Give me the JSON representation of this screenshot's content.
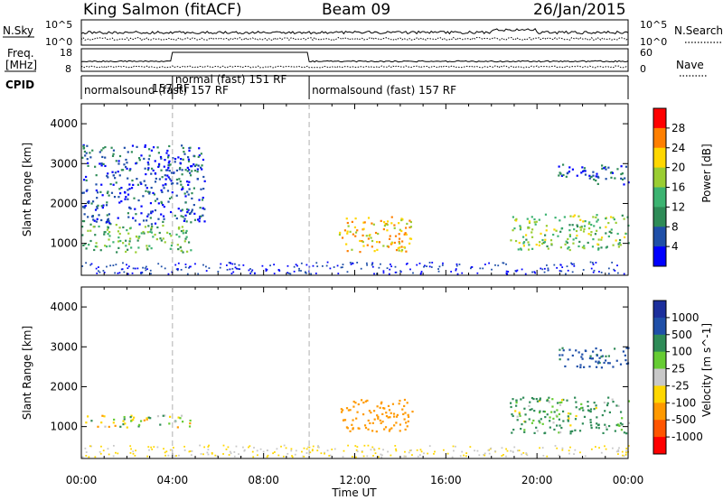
{
  "header": {
    "title": "King Salmon (fitACF)",
    "beam": "Beam 09",
    "date": "26/Jan/2015"
  },
  "top_panels": {
    "nsky_label": "N.Sky",
    "nsearch_label": "N.Search",
    "freq_label_1": "Freq.",
    "freq_label_2": "[MHz]",
    "nave_label": "Nave",
    "cpid_label": "CPID",
    "noise_ticks_left": [
      "10^5",
      "10^0"
    ],
    "noise_ticks_right": [
      "10^5",
      "10^0"
    ],
    "freq_ticks": [
      "18",
      "8"
    ],
    "nave_ticks": [
      "60",
      "0"
    ]
  },
  "cpid_segments": [
    {
      "label": "normalsound (fast) 157 RF",
      "start_hour": 0.0,
      "end_hour": 4.0
    },
    {
      "label": "normal (fast) 151 RF",
      "start_hour": 4.0,
      "end_hour": 10.0
    },
    {
      "label": "normalsound (fast) 157 RF",
      "start_hour": 10.0,
      "end_hour": 24.0
    }
  ],
  "cpid_overlap_label": "157 RF",
  "chart_data": [
    {
      "type": "heatmap",
      "name": "power",
      "ylabel": "Slant Range [km]",
      "xlabel": "",
      "xlim": [
        0,
        24
      ],
      "ylim": [
        200,
        4500
      ],
      "yticks": [
        "1000",
        "2000",
        "3000",
        "4000"
      ],
      "colorbar": {
        "label": "Power [dB]",
        "ticks": [
          "28",
          "24",
          "20",
          "16",
          "12",
          "8",
          "4"
        ],
        "colors": [
          "#ff0000",
          "#ff7f00",
          "#ffd700",
          "#9acd32",
          "#3cb371",
          "#2e8b57",
          "#1f4fa8",
          "#0000ff"
        ]
      },
      "features": [
        {
          "start_hour": 0.0,
          "end_hour": 4.8,
          "range_min_km": 800,
          "range_max_km": 1500,
          "level_db": 14
        },
        {
          "start_hour": 0.0,
          "end_hour": 5.4,
          "range_min_km": 1500,
          "range_max_km": 3500,
          "level_db": 6
        },
        {
          "start_hour": 11.3,
          "end_hour": 14.5,
          "range_min_km": 800,
          "range_max_km": 1700,
          "level_db": 22
        },
        {
          "start_hour": 18.8,
          "end_hour": 24.0,
          "range_min_km": 850,
          "range_max_km": 1750,
          "level_db": 16
        },
        {
          "start_hour": 20.8,
          "end_hour": 24.0,
          "range_min_km": 2500,
          "range_max_km": 3000,
          "level_db": 6
        }
      ]
    },
    {
      "type": "heatmap",
      "name": "velocity",
      "ylabel": "Slant Range [km]",
      "xlabel": "Time UT",
      "xlim": [
        0,
        24
      ],
      "ylim": [
        200,
        4500
      ],
      "yticks": [
        "1000",
        "2000",
        "3000",
        "4000"
      ],
      "xticks": [
        "00:00",
        "04:00",
        "08:00",
        "12:00",
        "16:00",
        "20:00",
        "00:00"
      ],
      "colorbar": {
        "label": "Velocity [m s^-1]",
        "ticks": [
          "1000",
          "500",
          "100",
          "25",
          "-25",
          "-100",
          "-500",
          "-1000"
        ],
        "colors": [
          "#1c2f9c",
          "#1f4fa8",
          "#2e8b57",
          "#66cc33",
          "#c8c8c8",
          "#ffd700",
          "#ff9900",
          "#ff5500",
          "#ff0000"
        ]
      },
      "features": [
        {
          "start_hour": 0.0,
          "end_hour": 4.8,
          "range_min_km": 1000,
          "range_max_km": 1300,
          "velocity_ms": 0
        },
        {
          "start_hour": 11.3,
          "end_hour": 14.5,
          "range_min_km": 900,
          "range_max_km": 1700,
          "velocity_ms": -300
        },
        {
          "start_hour": 18.8,
          "end_hour": 24.0,
          "range_min_km": 850,
          "range_max_km": 1750,
          "velocity_ms": 150
        },
        {
          "start_hour": 20.8,
          "end_hour": 24.0,
          "range_min_km": 2500,
          "range_max_km": 3000,
          "velocity_ms": 600
        }
      ]
    }
  ]
}
